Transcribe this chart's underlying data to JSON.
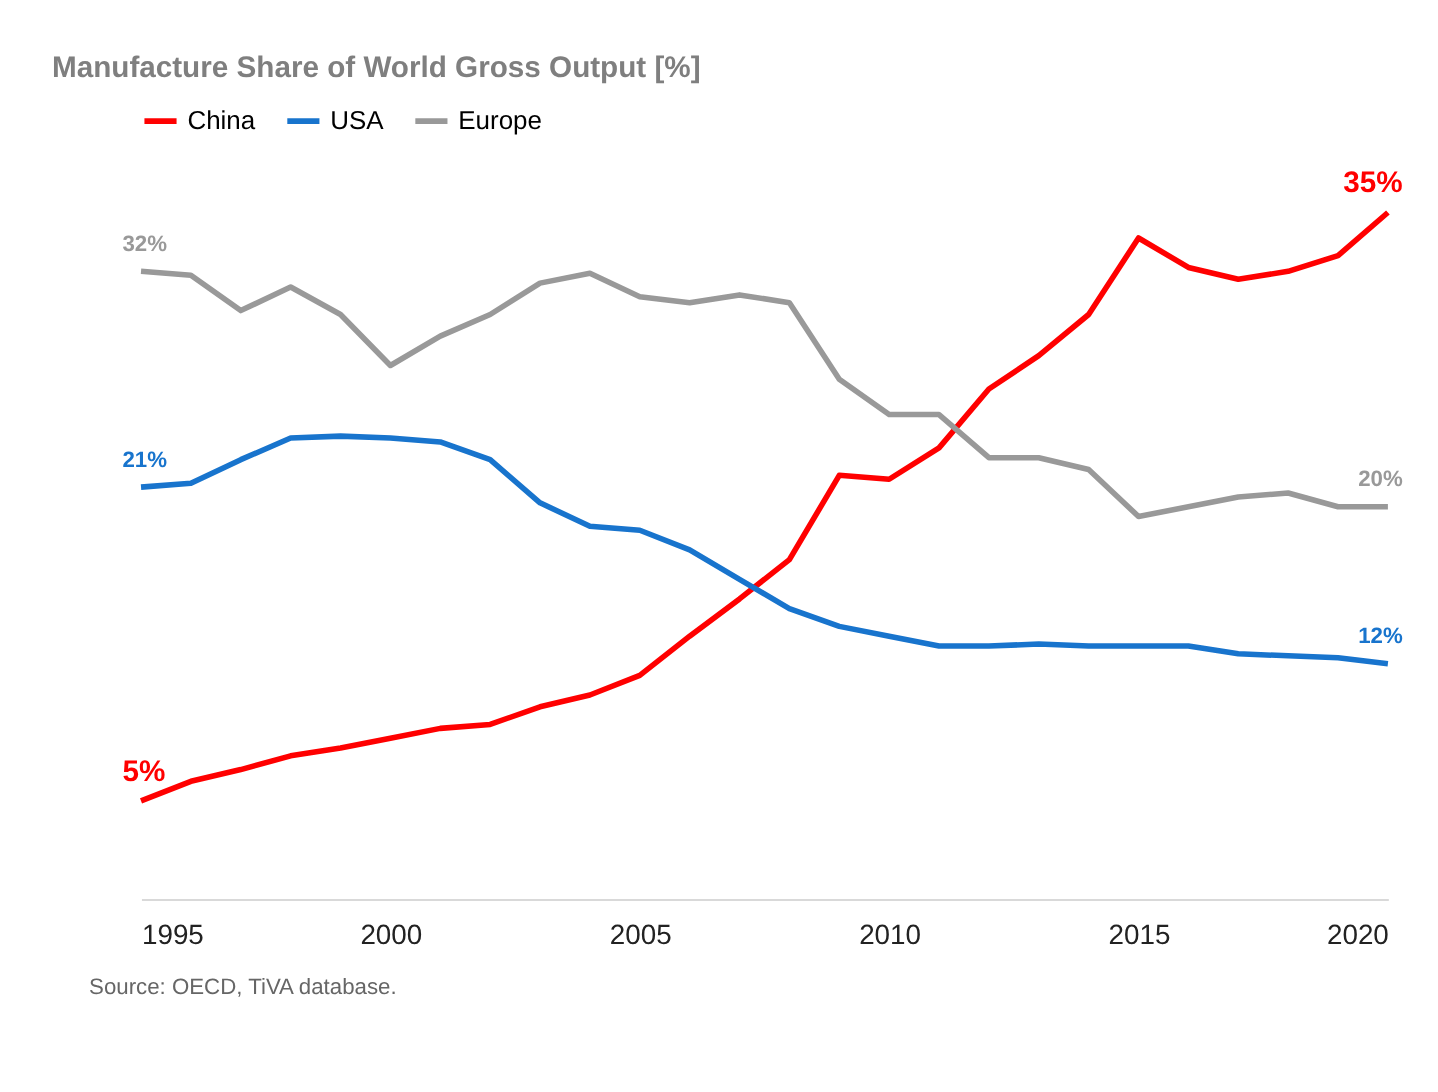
{
  "chart_data": {
    "type": "line",
    "title": "Manufacture Share of World Gross Output [%]",
    "x": [
      1995,
      1996,
      1997,
      1998,
      1999,
      2000,
      2001,
      2002,
      2003,
      2004,
      2005,
      2006,
      2007,
      2008,
      2009,
      2010,
      2011,
      2012,
      2013,
      2014,
      2015,
      2016,
      2017,
      2018,
      2019,
      2020
    ],
    "series": [
      {
        "name": "China",
        "color": "#ff0000",
        "values": [
          5,
          6.0,
          6.6,
          7.3,
          7.7,
          8.2,
          8.7,
          8.9,
          9.8,
          10.4,
          11.4,
          13.4,
          15.3,
          17.3,
          21.6,
          21.4,
          23.0,
          26.0,
          27.7,
          29.8,
          33.7,
          32.2,
          31.6,
          32.0,
          32.8,
          35
        ],
        "value_labels": [
          "5%",
          null,
          null,
          null,
          null,
          null,
          null,
          null,
          null,
          null,
          null,
          null,
          null,
          null,
          null,
          null,
          null,
          null,
          null,
          null,
          null,
          null,
          null,
          null,
          null,
          "35%"
        ]
      },
      {
        "name": "USA",
        "color": "#1874cd",
        "values": [
          21,
          21.2,
          22.4,
          23.5,
          23.6,
          23.5,
          23.3,
          22.4,
          20.2,
          19.0,
          18.8,
          17.8,
          16.3,
          14.8,
          13.9,
          13.4,
          12.9,
          12.9,
          13.0,
          12.9,
          12.9,
          12.9,
          12.5,
          12.4,
          12.3,
          12
        ],
        "value_labels": [
          "21%",
          null,
          null,
          null,
          null,
          null,
          null,
          null,
          null,
          null,
          null,
          null,
          null,
          null,
          null,
          null,
          null,
          null,
          null,
          null,
          null,
          null,
          null,
          null,
          null,
          "12%"
        ]
      },
      {
        "name": "Europe",
        "color": "#999999",
        "values": [
          32,
          31.8,
          30.0,
          31.2,
          29.8,
          27.2,
          28.7,
          29.8,
          31.4,
          31.9,
          30.7,
          30.4,
          30.8,
          30.4,
          26.5,
          24.7,
          24.7,
          22.5,
          22.5,
          21.9,
          19.5,
          20.0,
          20.5,
          20.7,
          20.0,
          20
        ],
        "value_labels": [
          "32%",
          null,
          null,
          null,
          null,
          null,
          null,
          null,
          null,
          null,
          null,
          null,
          null,
          null,
          null,
          null,
          null,
          null,
          null,
          null,
          null,
          null,
          null,
          null,
          null,
          "20%"
        ]
      }
    ],
    "xlim": [
      1995,
      2020
    ],
    "xticks": [
      1995,
      2000,
      2005,
      2010,
      2015,
      2020
    ],
    "tick_labels": "x",
    "grid": false,
    "legend": "top",
    "marker": "none",
    "line_style": "solid",
    "annotations": [
      "Source: OECD, TiVA database."
    ]
  }
}
